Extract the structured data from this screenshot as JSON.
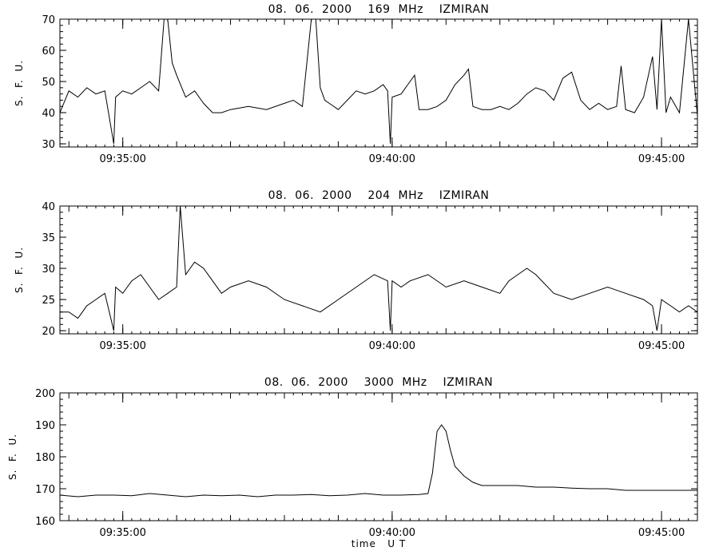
{
  "chart_data": [
    {
      "type": "line",
      "title": "08.  06.  2000    169  MHz    IZMIRAN",
      "ylabel": "S.  F.  U.",
      "xlabel": "",
      "ylim": [
        29,
        70
      ],
      "yticks": [
        30,
        40,
        50,
        60,
        70
      ],
      "xlim": [
        "09:33:50",
        "09:45:40"
      ],
      "xticks": [
        "09:35:00",
        "09:40:00",
        "09:45:00"
      ],
      "series": [
        {
          "x": [
            "09:33:50",
            "09:34:00",
            "09:34:10",
            "09:34:20",
            "09:34:30",
            "09:34:40",
            "09:34:50",
            "09:34:52",
            "09:35:00",
            "09:35:10",
            "09:35:20",
            "09:35:30",
            "09:35:40",
            "09:35:46",
            "09:35:50",
            "09:35:55",
            "09:36:00",
            "09:36:10",
            "09:36:20",
            "09:36:30",
            "09:36:40",
            "09:36:50",
            "09:37:00",
            "09:37:20",
            "09:37:40",
            "09:38:00",
            "09:38:10",
            "09:38:20",
            "09:38:30",
            "09:38:35",
            "09:38:40",
            "09:38:45",
            "09:38:50",
            "09:39:00",
            "09:39:10",
            "09:39:20",
            "09:39:30",
            "09:39:40",
            "09:39:50",
            "09:39:55",
            "09:39:58",
            "09:40:00",
            "09:40:10",
            "09:40:20",
            "09:40:25",
            "09:40:30",
            "09:40:40",
            "09:40:50",
            "09:41:00",
            "09:41:10",
            "09:41:20",
            "09:41:25",
            "09:41:30",
            "09:41:40",
            "09:41:50",
            "09:42:00",
            "09:42:10",
            "09:42:20",
            "09:42:30",
            "09:42:40",
            "09:42:50",
            "09:43:00",
            "09:43:10",
            "09:43:20",
            "09:43:30",
            "09:43:40",
            "09:43:50",
            "09:44:00",
            "09:44:10",
            "09:44:15",
            "09:44:20",
            "09:44:30",
            "09:44:40",
            "09:44:50",
            "09:44:55",
            "09:45:00",
            "09:45:05",
            "09:45:10",
            "09:45:20",
            "09:45:30",
            "09:45:40"
          ],
          "y": [
            40,
            47,
            45,
            48,
            46,
            47,
            30,
            45,
            47,
            46,
            48,
            50,
            47,
            70,
            70,
            56,
            52,
            45,
            47,
            43,
            40,
            40,
            41,
            42,
            41,
            43,
            44,
            42,
            70,
            70,
            48,
            44,
            43,
            41,
            44,
            47,
            46,
            47,
            49,
            47,
            30,
            45,
            46,
            50,
            52,
            41,
            41,
            42,
            44,
            49,
            52,
            54,
            42,
            41,
            41,
            42,
            41,
            43,
            46,
            48,
            47,
            44,
            51,
            53,
            44,
            41,
            43,
            41,
            42,
            55,
            41,
            40,
            45,
            58,
            41,
            70,
            40,
            45,
            40,
            70,
            39
          ]
        }
      ]
    },
    {
      "type": "line",
      "title": "08.  06.  2000    204  MHz    IZMIRAN",
      "ylabel": "S.  F.  U.",
      "xlabel": "",
      "ylim": [
        19.5,
        40
      ],
      "yticks": [
        20,
        25,
        30,
        35,
        40
      ],
      "xlim": [
        "09:33:50",
        "09:45:40"
      ],
      "xticks": [
        "09:35:00",
        "09:40:00",
        "09:45:00"
      ],
      "series": [
        {
          "x": [
            "09:33:50",
            "09:34:00",
            "09:34:10",
            "09:34:20",
            "09:34:30",
            "09:34:40",
            "09:34:50",
            "09:34:52",
            "09:35:00",
            "09:35:10",
            "09:35:20",
            "09:35:30",
            "09:35:40",
            "09:35:50",
            "09:36:00",
            "09:36:04",
            "09:36:10",
            "09:36:20",
            "09:36:30",
            "09:36:40",
            "09:36:50",
            "09:37:00",
            "09:37:20",
            "09:37:40",
            "09:38:00",
            "09:38:20",
            "09:38:40",
            "09:39:00",
            "09:39:20",
            "09:39:40",
            "09:39:55",
            "09:39:58",
            "09:40:00",
            "09:40:10",
            "09:40:20",
            "09:40:40",
            "09:41:00",
            "09:41:20",
            "09:41:40",
            "09:42:00",
            "09:42:10",
            "09:42:20",
            "09:42:30",
            "09:42:40",
            "09:43:00",
            "09:43:20",
            "09:43:40",
            "09:44:00",
            "09:44:20",
            "09:44:40",
            "09:44:50",
            "09:44:55",
            "09:45:00",
            "09:45:10",
            "09:45:20",
            "09:45:30",
            "09:45:40"
          ],
          "y": [
            23,
            23,
            22,
            24,
            25,
            26,
            20,
            27,
            26,
            28,
            29,
            27,
            25,
            26,
            27,
            40,
            29,
            31,
            30,
            28,
            26,
            27,
            28,
            27,
            25,
            24,
            23,
            25,
            27,
            29,
            28,
            20,
            28,
            27,
            28,
            29,
            27,
            28,
            27,
            26,
            28,
            29,
            30,
            29,
            26,
            25,
            26,
            27,
            26,
            25,
            24,
            20,
            25,
            24,
            23,
            24,
            23
          ]
        }
      ]
    },
    {
      "type": "line",
      "title": "08.  06.  2000    3000  MHz    IZMIRAN",
      "ylabel": "S.  F.  U.",
      "xlabel": "time   U T",
      "ylim": [
        160,
        200
      ],
      "yticks": [
        160,
        170,
        180,
        190,
        200
      ],
      "xlim": [
        "09:33:50",
        "09:45:40"
      ],
      "xticks": [
        "09:35:00",
        "09:40:00",
        "09:45:00"
      ],
      "series": [
        {
          "x": [
            "09:33:50",
            "09:34:10",
            "09:34:30",
            "09:34:50",
            "09:35:10",
            "09:35:30",
            "09:35:50",
            "09:36:10",
            "09:36:30",
            "09:36:50",
            "09:37:10",
            "09:37:30",
            "09:37:50",
            "09:38:10",
            "09:38:30",
            "09:38:50",
            "09:39:10",
            "09:39:30",
            "09:39:50",
            "09:40:10",
            "09:40:30",
            "09:40:40",
            "09:40:45",
            "09:40:50",
            "09:40:55",
            "09:41:00",
            "09:41:05",
            "09:41:10",
            "09:41:20",
            "09:41:30",
            "09:41:40",
            "09:42:00",
            "09:42:20",
            "09:42:40",
            "09:43:00",
            "09:43:20",
            "09:43:40",
            "09:44:00",
            "09:44:20",
            "09:44:40",
            "09:45:00",
            "09:45:20",
            "09:45:40"
          ],
          "y": [
            168,
            167.5,
            168,
            168,
            167.8,
            168.5,
            168,
            167.5,
            168,
            167.8,
            168,
            167.5,
            168,
            168,
            168.2,
            167.8,
            168,
            168.5,
            168,
            168,
            168.2,
            168.5,
            175,
            188,
            190,
            188,
            182,
            177,
            174,
            172,
            171,
            171,
            171,
            170.5,
            170.5,
            170.2,
            170,
            170,
            169.5,
            169.5,
            169.5,
            169.5,
            169.5
          ]
        }
      ]
    }
  ]
}
